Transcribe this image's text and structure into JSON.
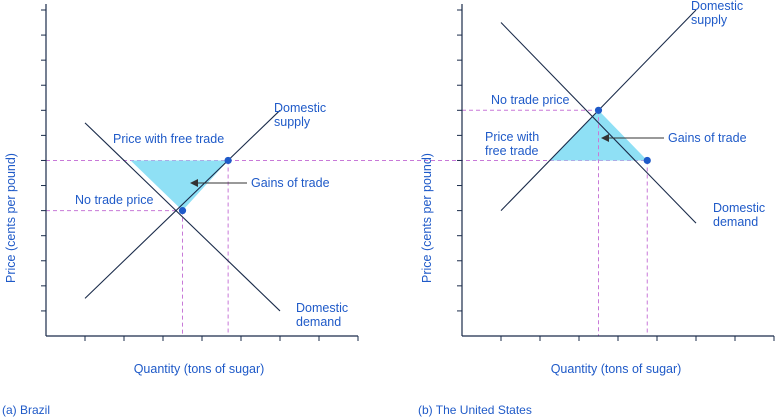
{
  "colors": {
    "axis": "#1a2b4a",
    "curve": "#1a2b4a",
    "dashed": "#c879d8",
    "point": "#1f5ac8",
    "fill": "#8fe0f5",
    "text": "#1f5ac8",
    "arrow": "#333333"
  },
  "chart_data": [
    {
      "type": "line",
      "panel_caption": "(a) Brazil",
      "xlabel": "Quantity (tons of sugar)",
      "ylabel": "Price (cents per pound)",
      "grid": false,
      "x_tick_count": 8,
      "y_tick_count": 13,
      "series": [
        {
          "name": "Domestic supply",
          "points": [
            [
              1.0,
              1.5
            ],
            [
              6.0,
              9.0
            ]
          ]
        },
        {
          "name": "Domestic demand",
          "points": [
            [
              1.0,
              8.5
            ],
            [
              6.0,
              1.0
            ]
          ]
        }
      ],
      "points": [
        {
          "label": "No trade price",
          "x": 3.5,
          "y": 5.0
        },
        {
          "label": "",
          "x": 4.67,
          "y": 7.0
        }
      ],
      "reference_price_label": "Price with free trade",
      "reference_price": 7.0,
      "shaded_region_label": "Gains of trade",
      "shaded_region": [
        [
          2.17,
          7.0
        ],
        [
          4.67,
          7.0
        ],
        [
          3.5,
          5.0
        ]
      ],
      "annotations": {
        "supply": [
          "Domestic",
          "supply"
        ],
        "demand": [
          "Domestic",
          "demand"
        ]
      }
    },
    {
      "type": "line",
      "panel_caption": "(b) The United States",
      "xlabel": "Quantity (tons of sugar)",
      "ylabel": "Price (cents per pound)",
      "grid": false,
      "x_tick_count": 8,
      "y_tick_count": 13,
      "series": [
        {
          "name": "Domestic supply",
          "points": [
            [
              1.0,
              5.0
            ],
            [
              6.0,
              13.0
            ]
          ]
        },
        {
          "name": "Domestic demand",
          "points": [
            [
              1.0,
              12.5
            ],
            [
              6.0,
              4.5
            ]
          ]
        }
      ],
      "points": [
        {
          "label": "No trade price",
          "x": 3.5,
          "y": 9.0
        },
        {
          "label": "",
          "x": 4.75,
          "y": 7.0
        }
      ],
      "reference_price_label": [
        "Price with",
        "free trade"
      ],
      "reference_price": 7.0,
      "shaded_region_label": "Gains of trade",
      "shaded_region": [
        [
          2.25,
          7.0
        ],
        [
          4.75,
          7.0
        ],
        [
          3.5,
          9.0
        ]
      ],
      "annotations": {
        "supply": [
          "Domestic",
          "supply"
        ],
        "demand": [
          "Domestic",
          "demand"
        ]
      }
    }
  ]
}
